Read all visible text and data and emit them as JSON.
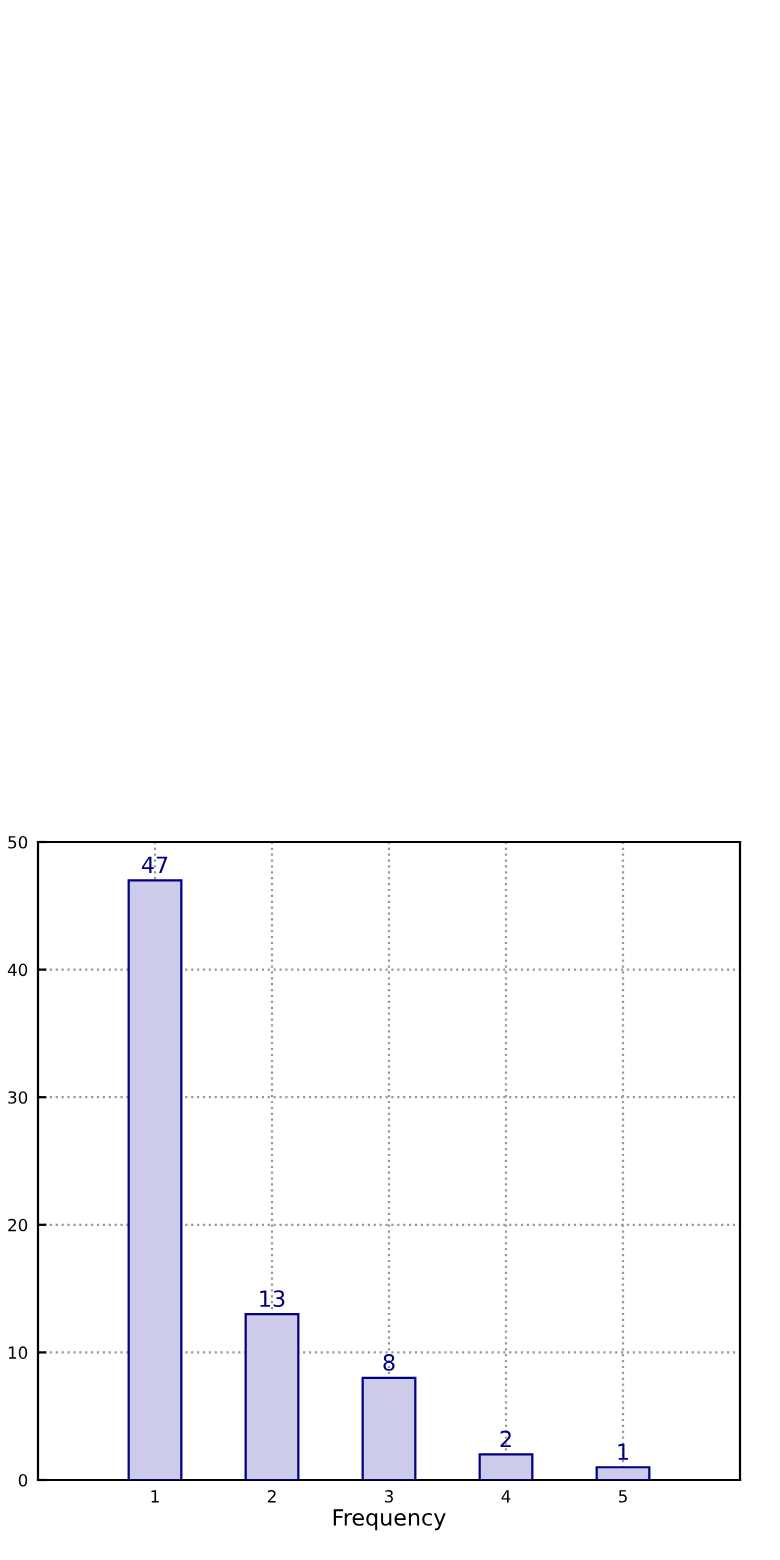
{
  "chart_data": {
    "type": "bar",
    "xlabel": "Frequency",
    "x": [
      1,
      2,
      3,
      4,
      5
    ],
    "values": [
      47,
      13,
      8,
      2,
      1
    ],
    "color": "#ccccea",
    "xlim": [
      0,
      6
    ],
    "xticks": [
      1,
      2,
      3,
      4,
      5
    ],
    "ylim": [
      0,
      50
    ],
    "yticks": [
      0,
      10,
      20,
      30,
      40,
      50
    ],
    "grid": true,
    "data_labels": true,
    "legend": false
  }
}
